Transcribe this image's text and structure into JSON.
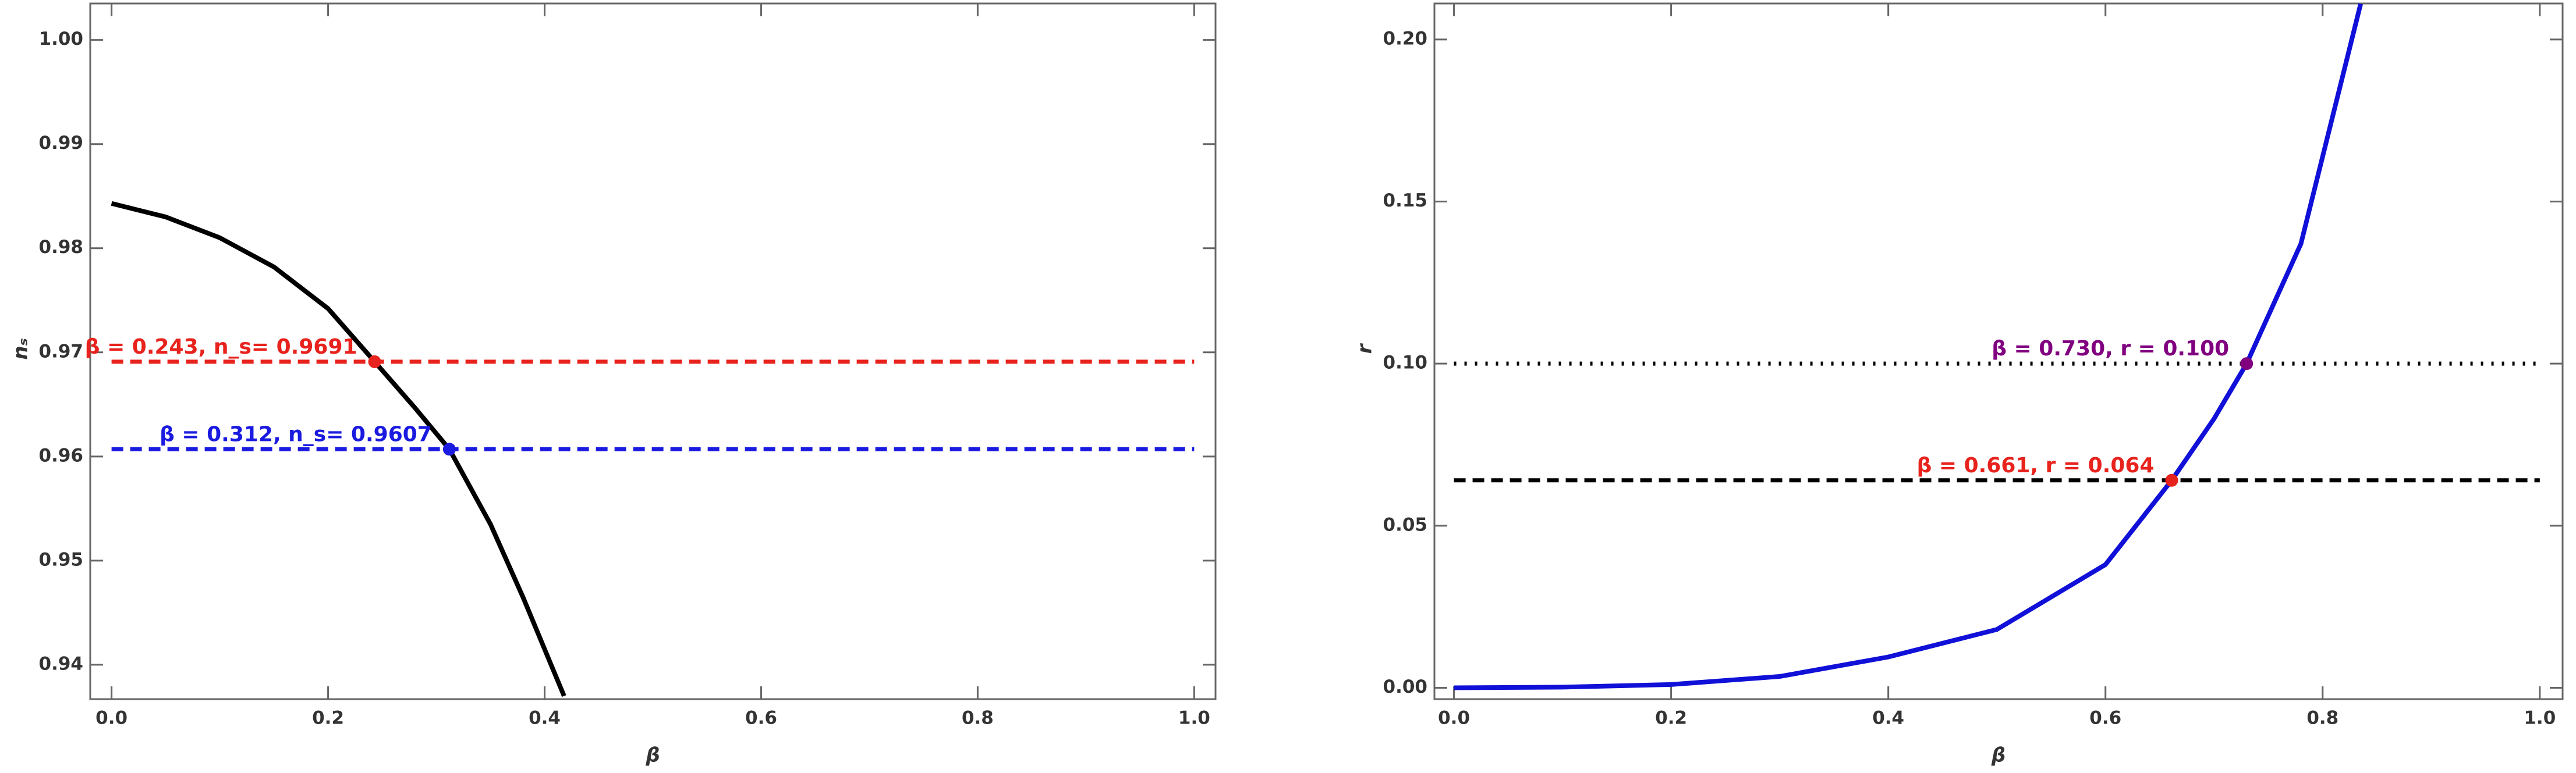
{
  "chart_data": [
    {
      "type": "line",
      "xlabel": "β",
      "ylabel": "nₛ",
      "xlim": [
        -0.0197,
        1.0197
      ],
      "ylim": [
        0.9367,
        1.0035
      ],
      "xticks": [
        {
          "value": 0,
          "label": "0.0"
        },
        0.2,
        0.4,
        0.6,
        0.8,
        {
          "value": 1,
          "label": "1.0"
        }
      ],
      "yticks": [
        0.94,
        0.95,
        0.96,
        0.97,
        0.98,
        0.99,
        {
          "value": 1,
          "label": "1.00"
        }
      ],
      "curve": {
        "color": "#000000",
        "x": [
          0,
          0.05,
          0.1,
          0.15,
          0.2,
          0.243,
          0.28,
          0.312,
          0.35,
          0.38,
          0.4,
          0.418
        ],
        "values": [
          0.9843,
          0.983,
          0.981,
          0.9782,
          0.9742,
          0.9691,
          0.9647,
          0.9607,
          0.9535,
          0.9465,
          0.9415,
          0.937
        ]
      },
      "hlines": [
        {
          "value": 0.9691,
          "color": "#e8221c",
          "style": "dashed",
          "from": 0,
          "to": 1
        },
        {
          "value": 0.9607,
          "color": "#1a1ae0",
          "style": "dashed",
          "from": 0,
          "to": 1
        }
      ],
      "points": [
        {
          "x": 0.243,
          "y": 0.9691,
          "color": "#e8221c",
          "label": "β = 0.243, n_s= 0.9691"
        },
        {
          "x": 0.312,
          "y": 0.9607,
          "color": "#1a1ae0",
          "label": "β = 0.312, n_s= 0.9607"
        }
      ]
    },
    {
      "type": "line",
      "xlabel": "β",
      "ylabel": "r",
      "xlim": [
        -0.018,
        1.021
      ],
      "ylim": [
        -0.0035,
        0.2111
      ],
      "xticks": [
        {
          "value": 0,
          "label": "0.0"
        },
        0.2,
        0.4,
        0.6,
        0.8,
        {
          "value": 1,
          "label": "1.0"
        }
      ],
      "yticks": [
        {
          "value": 0,
          "label": "0.00"
        },
        0.05,
        {
          "value": 0.1,
          "label": "0.10"
        },
        0.15,
        {
          "value": 0.2,
          "label": "0.20"
        }
      ],
      "curve": {
        "color": "#1010d8",
        "x": [
          0,
          0.1,
          0.2,
          0.3,
          0.4,
          0.5,
          0.6,
          0.661,
          0.7,
          0.73,
          0.78,
          0.835
        ],
        "values": [
          0,
          0.0002,
          0.001,
          0.0035,
          0.0095,
          0.018,
          0.038,
          0.064,
          0.083,
          0.1,
          0.137,
          0.211
        ]
      },
      "hlines": [
        {
          "value": 0.1,
          "color": "#000000",
          "style": "dotted",
          "from": 0,
          "to": 1
        },
        {
          "value": 0.064,
          "color": "#000000",
          "style": "dashed",
          "from": 0,
          "to": 1
        }
      ],
      "points": [
        {
          "x": 0.73,
          "y": 0.1,
          "color": "#800080",
          "label": "β = 0.730, r = 0.100"
        },
        {
          "x": 0.661,
          "y": 0.064,
          "color": "#e8221c",
          "label": "β = 0.661, r = 0.064"
        }
      ]
    }
  ]
}
